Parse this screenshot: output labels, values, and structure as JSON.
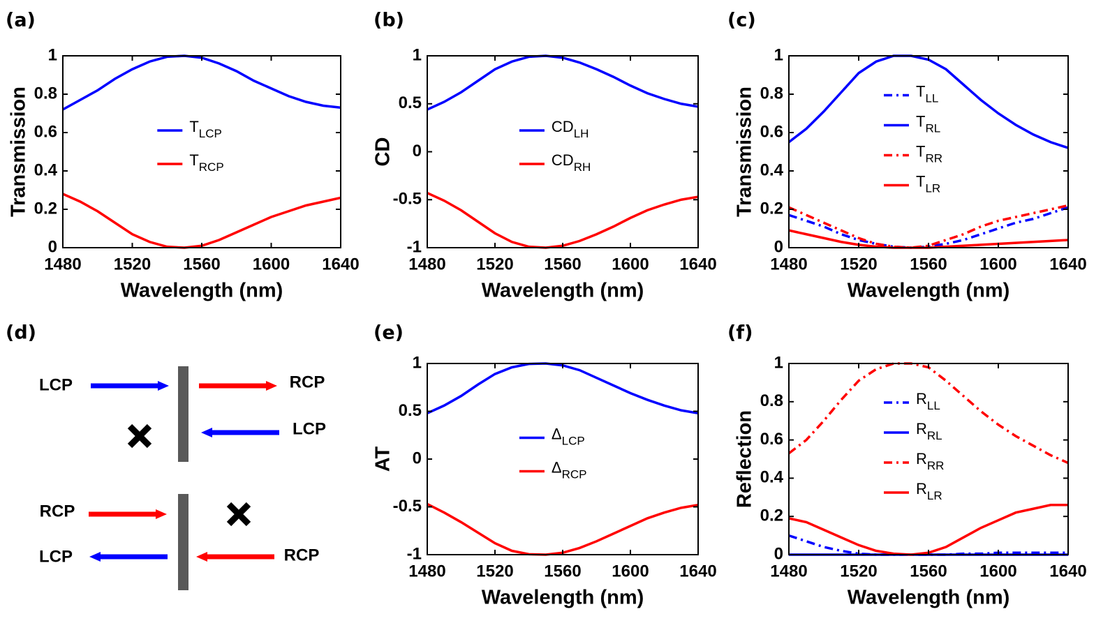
{
  "chart_data": [
    {
      "type": "line",
      "label": "(a)",
      "xlabel": "Wavelength (nm)",
      "ylabel": "Transmission",
      "x": [
        1480,
        1490,
        1500,
        1510,
        1520,
        1530,
        1540,
        1550,
        1560,
        1570,
        1580,
        1590,
        1600,
        1610,
        1620,
        1630,
        1640
      ],
      "xlim": [
        1480,
        1640
      ],
      "xticks": [
        1480,
        1520,
        1560,
        1600,
        1640
      ],
      "ylim": [
        0,
        1
      ],
      "yticks": [
        0,
        0.2,
        0.4,
        0.6,
        0.8,
        1
      ],
      "legend": "center",
      "series": [
        {
          "name": "T",
          "name_sub": "LCP",
          "color": "#0000ff",
          "dash": "solid",
          "values": [
            0.72,
            0.77,
            0.82,
            0.88,
            0.93,
            0.97,
            0.995,
            1,
            0.99,
            0.96,
            0.92,
            0.87,
            0.83,
            0.79,
            0.76,
            0.74,
            0.73
          ]
        },
        {
          "name": "T",
          "name_sub": "RCP",
          "color": "#ff0000",
          "dash": "solid",
          "values": [
            0.28,
            0.24,
            0.19,
            0.13,
            0.07,
            0.03,
            0.005,
            0,
            0.01,
            0.04,
            0.08,
            0.12,
            0.16,
            0.19,
            0.22,
            0.24,
            0.26
          ]
        }
      ]
    },
    {
      "type": "line",
      "label": "(b)",
      "xlabel": "Wavelength (nm)",
      "ylabel": "CD",
      "x": [
        1480,
        1490,
        1500,
        1510,
        1520,
        1530,
        1540,
        1550,
        1560,
        1570,
        1580,
        1590,
        1600,
        1610,
        1620,
        1630,
        1640
      ],
      "xlim": [
        1480,
        1640
      ],
      "xticks": [
        1480,
        1520,
        1560,
        1600,
        1640
      ],
      "ylim": [
        -1,
        1
      ],
      "yticks": [
        -1,
        -0.5,
        0,
        0.5,
        1
      ],
      "legend": "center",
      "series": [
        {
          "name": "CD",
          "name_sub": "LH",
          "color": "#0000ff",
          "dash": "solid",
          "values": [
            0.44,
            0.52,
            0.62,
            0.74,
            0.86,
            0.94,
            0.99,
            1,
            0.98,
            0.93,
            0.86,
            0.78,
            0.69,
            0.61,
            0.55,
            0.5,
            0.47
          ]
        },
        {
          "name": "CD",
          "name_sub": "RH",
          "color": "#ff0000",
          "dash": "solid",
          "values": [
            -0.43,
            -0.51,
            -0.61,
            -0.73,
            -0.85,
            -0.94,
            -0.99,
            -1,
            -0.98,
            -0.93,
            -0.86,
            -0.78,
            -0.69,
            -0.61,
            -0.55,
            -0.5,
            -0.47
          ]
        }
      ]
    },
    {
      "type": "line",
      "label": "(c)",
      "xlabel": "Wavelength (nm)",
      "ylabel": "Transmission",
      "x": [
        1480,
        1490,
        1500,
        1510,
        1520,
        1530,
        1540,
        1550,
        1560,
        1570,
        1580,
        1590,
        1600,
        1610,
        1620,
        1630,
        1640
      ],
      "xlim": [
        1480,
        1640
      ],
      "xticks": [
        1480,
        1520,
        1560,
        1600,
        1640
      ],
      "ylim": [
        0,
        1
      ],
      "yticks": [
        0,
        0.2,
        0.4,
        0.6,
        0.8,
        1
      ],
      "legend": "center",
      "series": [
        {
          "name": "T",
          "name_sub": "LL",
          "color": "#0000ff",
          "dash": "dashdot",
          "values": [
            0.17,
            0.14,
            0.11,
            0.07,
            0.04,
            0.02,
            0.005,
            0,
            0.005,
            0.02,
            0.04,
            0.07,
            0.1,
            0.13,
            0.15,
            0.18,
            0.21
          ]
        },
        {
          "name": "T",
          "name_sub": "RL",
          "color": "#0000ff",
          "dash": "solid",
          "values": [
            0.55,
            0.62,
            0.71,
            0.81,
            0.91,
            0.97,
            1,
            1,
            0.98,
            0.93,
            0.85,
            0.77,
            0.7,
            0.64,
            0.59,
            0.55,
            0.52
          ]
        },
        {
          "name": "T",
          "name_sub": "RR",
          "color": "#ff0000",
          "dash": "dashdot",
          "values": [
            0.21,
            0.17,
            0.13,
            0.09,
            0.05,
            0.02,
            0.005,
            0,
            0.01,
            0.04,
            0.07,
            0.11,
            0.14,
            0.16,
            0.18,
            0.2,
            0.22
          ]
        },
        {
          "name": "T",
          "name_sub": "LR",
          "color": "#ff0000",
          "dash": "solid",
          "values": [
            0.09,
            0.07,
            0.05,
            0.03,
            0.015,
            0.005,
            0,
            0,
            0,
            0.005,
            0.01,
            0.015,
            0.02,
            0.025,
            0.03,
            0.035,
            0.04
          ]
        }
      ]
    },
    {
      "type": "line",
      "label": "(e)",
      "xlabel": "Wavelength (nm)",
      "ylabel": "AT",
      "x": [
        1480,
        1490,
        1500,
        1510,
        1520,
        1530,
        1540,
        1550,
        1560,
        1570,
        1580,
        1590,
        1600,
        1610,
        1620,
        1630,
        1640
      ],
      "xlim": [
        1480,
        1640
      ],
      "xticks": [
        1480,
        1520,
        1560,
        1600,
        1640
      ],
      "ylim": [
        -1,
        1
      ],
      "yticks": [
        -1,
        -0.5,
        0,
        0.5,
        1
      ],
      "legend": "center",
      "series": [
        {
          "name": "Δ",
          "name_sub": "LCP",
          "color": "#0000ff",
          "dash": "solid",
          "values": [
            0.48,
            0.56,
            0.66,
            0.78,
            0.89,
            0.96,
            0.995,
            1,
            0.98,
            0.93,
            0.85,
            0.77,
            0.69,
            0.62,
            0.56,
            0.51,
            0.48
          ]
        },
        {
          "name": "Δ",
          "name_sub": "RCP",
          "color": "#ff0000",
          "dash": "solid",
          "values": [
            -0.47,
            -0.56,
            -0.66,
            -0.77,
            -0.88,
            -0.96,
            -0.995,
            -1,
            -0.98,
            -0.93,
            -0.86,
            -0.78,
            -0.7,
            -0.62,
            -0.56,
            -0.51,
            -0.48
          ]
        }
      ]
    },
    {
      "type": "line",
      "label": "(f)",
      "xlabel": "Wavelength (nm)",
      "ylabel": "Reflection",
      "x": [
        1480,
        1490,
        1500,
        1510,
        1520,
        1530,
        1540,
        1550,
        1560,
        1570,
        1580,
        1590,
        1600,
        1610,
        1620,
        1630,
        1640
      ],
      "xlim": [
        1480,
        1640
      ],
      "xticks": [
        1480,
        1520,
        1560,
        1600,
        1640
      ],
      "ylim": [
        0,
        1
      ],
      "yticks": [
        0,
        0.2,
        0.4,
        0.6,
        0.8,
        1
      ],
      "legend": "center",
      "series": [
        {
          "name": "R",
          "name_sub": "LL",
          "color": "#0000ff",
          "dash": "dashdot",
          "values": [
            0.1,
            0.07,
            0.04,
            0.02,
            0.005,
            0,
            0,
            0,
            0,
            0,
            0.005,
            0.005,
            0.01,
            0.01,
            0.01,
            0.01,
            0.01
          ]
        },
        {
          "name": "R",
          "name_sub": "RL",
          "color": "#0000ff",
          "dash": "solid",
          "values": [
            0,
            0,
            0,
            0,
            0,
            0,
            0,
            0,
            0,
            0,
            0,
            0,
            0,
            0,
            0,
            0,
            0
          ]
        },
        {
          "name": "R",
          "name_sub": "RR",
          "color": "#ff0000",
          "dash": "dashdot",
          "values": [
            0.53,
            0.6,
            0.7,
            0.81,
            0.91,
            0.97,
            1,
            1,
            0.98,
            0.91,
            0.83,
            0.75,
            0.68,
            0.62,
            0.57,
            0.52,
            0.48
          ]
        },
        {
          "name": "R",
          "name_sub": "LR",
          "color": "#ff0000",
          "dash": "solid",
          "values": [
            0.19,
            0.17,
            0.13,
            0.09,
            0.05,
            0.02,
            0.005,
            0,
            0.01,
            0.04,
            0.09,
            0.14,
            0.18,
            0.22,
            0.24,
            0.26,
            0.26
          ]
        }
      ]
    }
  ],
  "diagram": {
    "label": "(d)",
    "texts": [
      "LCP",
      "RCP",
      "LCP",
      "RCP",
      "LCP",
      "RCP"
    ]
  }
}
